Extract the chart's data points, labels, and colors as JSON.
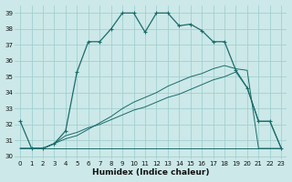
{
  "xlabel": "Humidex (Indice chaleur)",
  "background_color": "#cce8e8",
  "grid_color": "#99cccc",
  "line_color": "#1a6b6b",
  "xlim": [
    -0.5,
    23.5
  ],
  "ylim": [
    29.8,
    39.5
  ],
  "yticks": [
    30,
    31,
    32,
    33,
    34,
    35,
    36,
    37,
    38,
    39
  ],
  "xticks": [
    0,
    1,
    2,
    3,
    4,
    5,
    6,
    7,
    8,
    9,
    10,
    11,
    12,
    13,
    14,
    15,
    16,
    17,
    18,
    19,
    20,
    21,
    22,
    23
  ],
  "series1_x": [
    0,
    1,
    2,
    3,
    4,
    5,
    6,
    7,
    8,
    9,
    10,
    11,
    12,
    13,
    14,
    15,
    16,
    17,
    18,
    19,
    20,
    21,
    22,
    23
  ],
  "series1_y": [
    32.2,
    30.5,
    30.5,
    30.8,
    31.6,
    35.3,
    37.2,
    37.2,
    38.0,
    39.0,
    39.0,
    37.8,
    39.0,
    39.0,
    38.2,
    38.3,
    37.9,
    37.2,
    37.2,
    35.4,
    34.3,
    32.2,
    32.2,
    30.5
  ],
  "series2_x": [
    0,
    1,
    2,
    3,
    4,
    5,
    6,
    7,
    8,
    9,
    10,
    11,
    12,
    13,
    14,
    15,
    16,
    17,
    18,
    19,
    20,
    21,
    22,
    23
  ],
  "series2_y": [
    30.5,
    30.5,
    30.5,
    30.8,
    31.3,
    31.5,
    31.8,
    32.0,
    32.3,
    32.6,
    32.9,
    33.1,
    33.4,
    33.7,
    33.9,
    34.2,
    34.5,
    34.8,
    35.0,
    35.3,
    34.3,
    32.2,
    32.2,
    30.5
  ],
  "series3_x": [
    0,
    1,
    2,
    3,
    4,
    5,
    6,
    7,
    8,
    9,
    10,
    11,
    12,
    13,
    14,
    15,
    16,
    17,
    18,
    19,
    20,
    21,
    22,
    23
  ],
  "series3_y": [
    30.5,
    30.5,
    30.5,
    30.8,
    31.1,
    31.3,
    31.7,
    32.1,
    32.5,
    33.0,
    33.4,
    33.7,
    34.0,
    34.4,
    34.7,
    35.0,
    35.2,
    35.5,
    35.7,
    35.5,
    35.4,
    30.5,
    30.5,
    30.5
  ],
  "baseline_x": [
    0,
    1,
    2,
    3,
    4,
    5,
    6,
    7,
    8,
    9,
    10,
    11,
    12,
    13,
    14,
    15,
    16,
    17,
    18,
    19,
    20,
    21,
    22,
    23
  ],
  "baseline_y": [
    30.5,
    30.5,
    30.5,
    30.5,
    30.5,
    30.5,
    30.5,
    30.5,
    30.5,
    30.5,
    30.5,
    30.5,
    30.5,
    30.5,
    30.5,
    30.5,
    30.5,
    30.5,
    30.5,
    30.5,
    30.5,
    30.5,
    30.5,
    30.5
  ]
}
